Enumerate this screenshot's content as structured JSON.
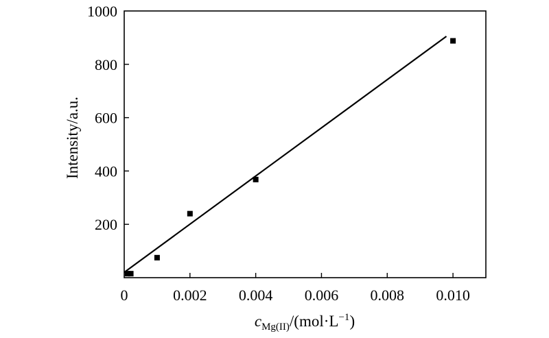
{
  "chart_data": {
    "type": "scatter",
    "xlabel": {
      "symbol": "c",
      "subscript": "Mg(II)",
      "unit_prefix": "/(mol·L",
      "unit_sup": "−1",
      "unit_suffix": ")"
    },
    "ylabel": "Intensity/a.u.",
    "xlim": [
      0,
      0.011
    ],
    "ylim": [
      0,
      1000
    ],
    "xticks": [
      {
        "value": 0,
        "label": "0"
      },
      {
        "value": 0.002,
        "label": "0.002"
      },
      {
        "value": 0.004,
        "label": "0.004"
      },
      {
        "value": 0.006,
        "label": "0.006"
      },
      {
        "value": 0.008,
        "label": "0.008"
      },
      {
        "value": 0.01,
        "label": "0.010"
      }
    ],
    "yticks": [
      {
        "value": 200,
        "label": "200"
      },
      {
        "value": 400,
        "label": "400"
      },
      {
        "value": 600,
        "label": "600"
      },
      {
        "value": 800,
        "label": "800"
      },
      {
        "value": 1000,
        "label": "1000"
      }
    ],
    "points": [
      {
        "x": 0.0001,
        "y": 15
      },
      {
        "x": 0.0002,
        "y": 15
      },
      {
        "x": 0.001,
        "y": 75
      },
      {
        "x": 0.002,
        "y": 240
      },
      {
        "x": 0.004,
        "y": 368
      },
      {
        "x": 0.01,
        "y": 888
      }
    ],
    "fit_line": {
      "x_start": 0,
      "y_start": 20,
      "x_end": 0.0098,
      "y_end": 905
    },
    "grid": false,
    "legend": "none",
    "colors": {
      "marker": "#000000",
      "line": "#000000",
      "axis": "#000000"
    }
  }
}
